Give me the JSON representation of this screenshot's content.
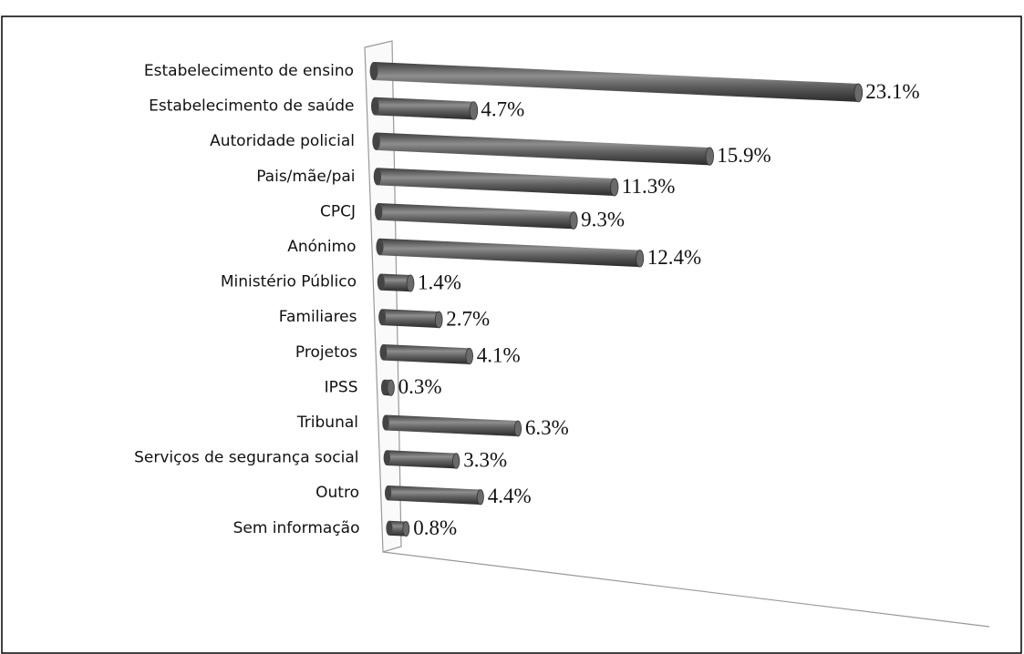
{
  "chart_data": {
    "type": "bar",
    "orientation": "horizontal",
    "categories": [
      "Estabelecimento de ensino",
      "Estabelecimento de saúde",
      "Autoridade policial",
      "Pais/mãe/pai",
      "CPCJ",
      "Anónimo",
      "Ministério Público",
      "Familiares",
      "Projetos",
      "IPSS",
      "Tribunal",
      "Serviços de segurança social",
      "Outro",
      "Sem informação"
    ],
    "values": [
      23.1,
      4.7,
      15.9,
      11.3,
      9.3,
      12.4,
      1.4,
      2.7,
      4.1,
      0.3,
      6.3,
      3.3,
      4.4,
      0.8
    ],
    "value_labels": [
      "23.1%",
      "4.7%",
      "15.9%",
      "11.3%",
      "9.3%",
      "12.4%",
      "1.4%",
      "2.7%",
      "4.1%",
      "0.3%",
      "6.3%",
      "3.3%",
      "4.4%",
      "0.8%"
    ],
    "color": "#555555"
  }
}
